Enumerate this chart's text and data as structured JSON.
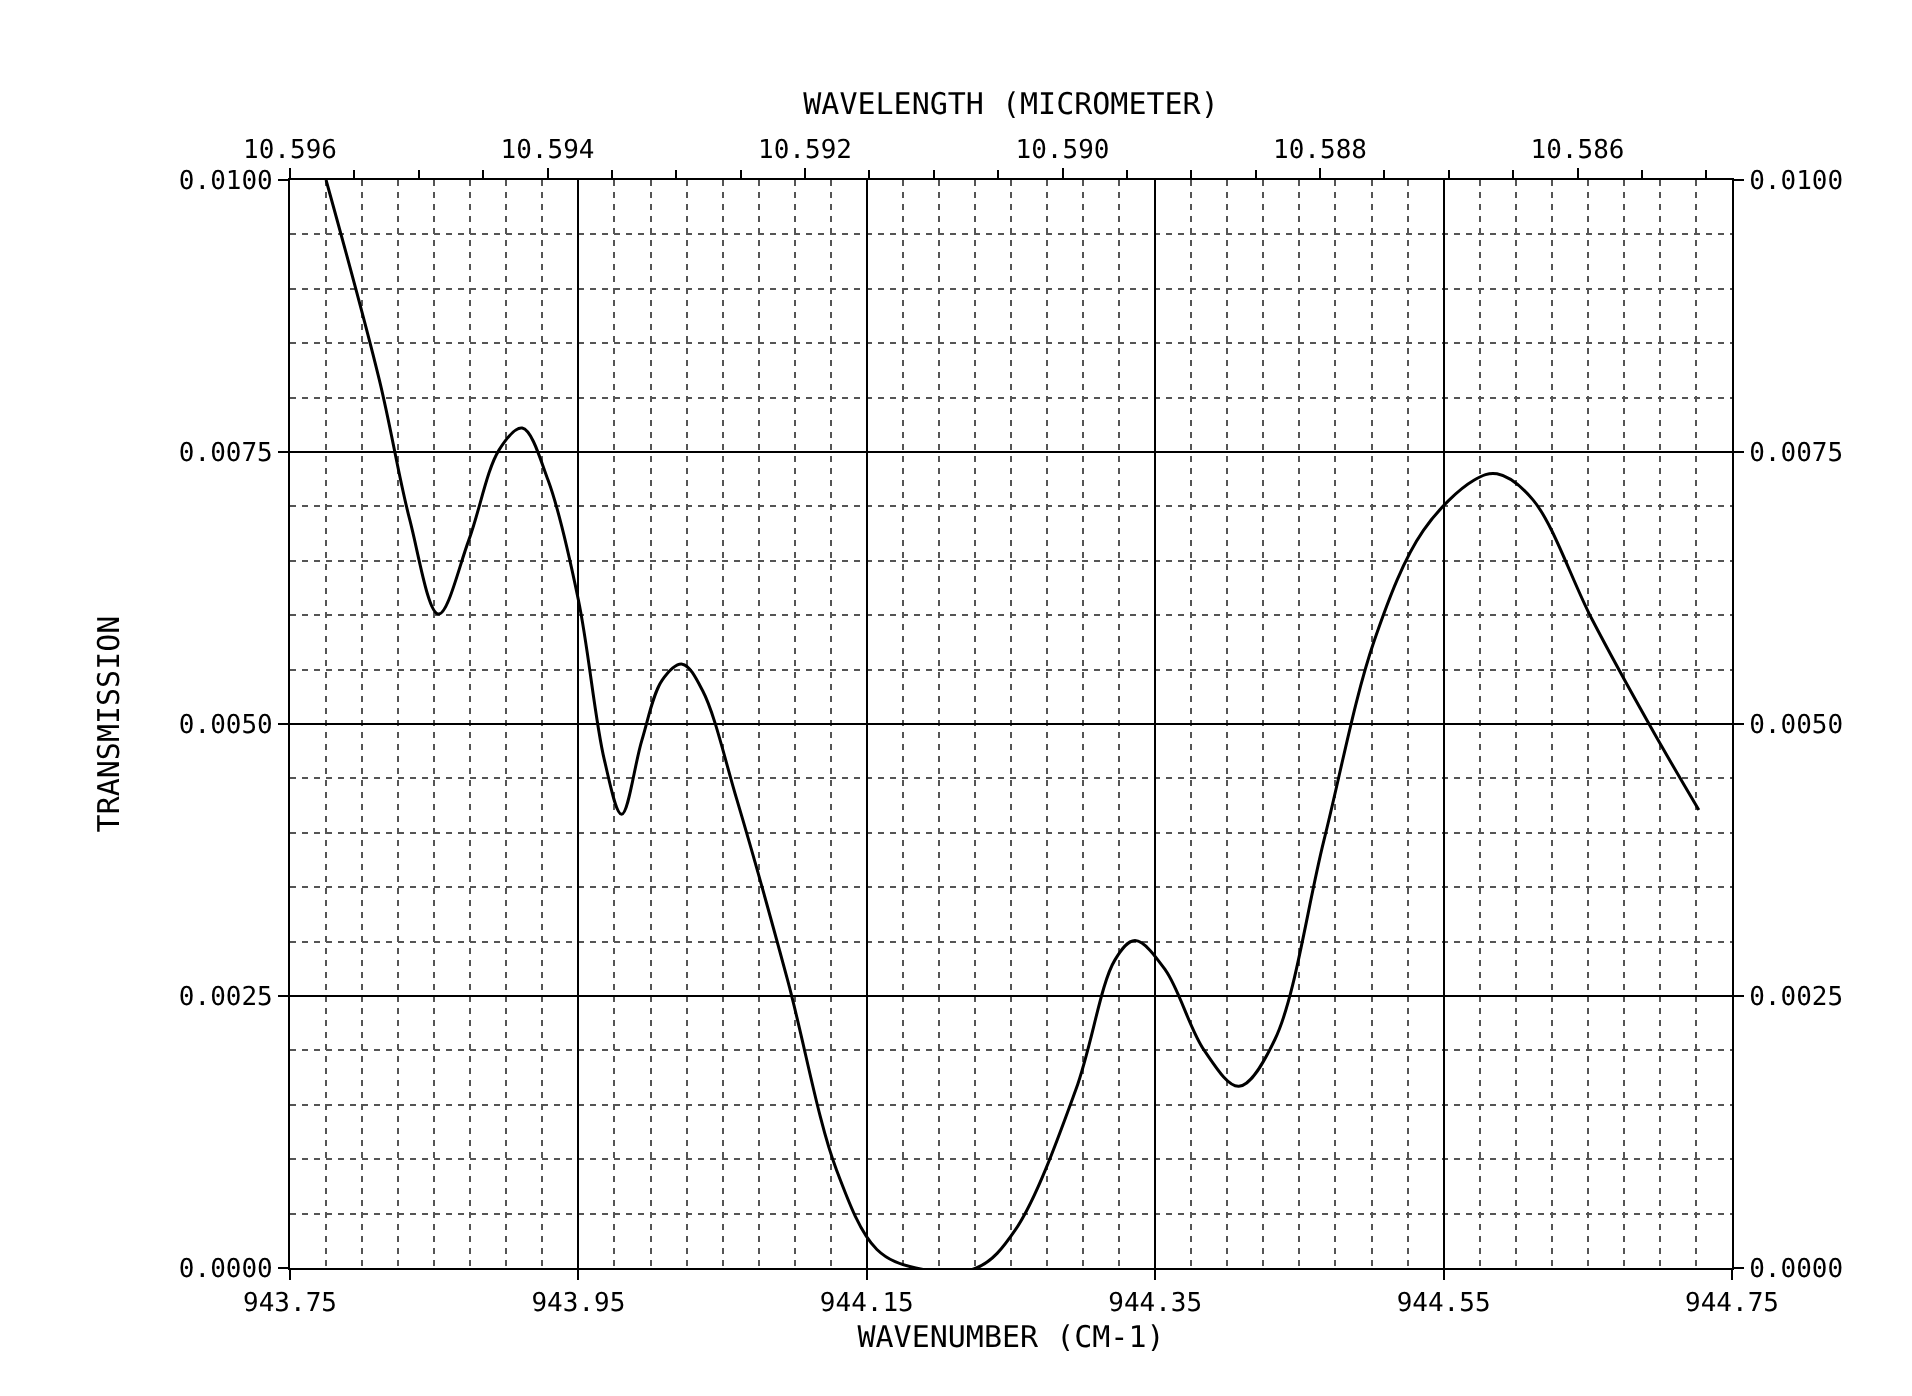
{
  "chart_data": {
    "type": "line",
    "xlabel": "WAVENUMBER (CM-1)",
    "x2label": "WAVELENGTH (MICROMETER)",
    "ylabel": "TRANSMISSION",
    "x": [
      943.775,
      943.812,
      943.833,
      943.853,
      943.874,
      943.895,
      943.911,
      943.929,
      943.95,
      943.968,
      943.98,
      943.994,
      944.008,
      944.022,
      944.036,
      944.06,
      944.095,
      944.129,
      944.157,
      944.184,
      944.226,
      944.253,
      944.295,
      944.322,
      944.336,
      944.357,
      944.384,
      944.408,
      944.433,
      944.467,
      944.502,
      944.536,
      944.571,
      944.587,
      944.612,
      944.653,
      944.695,
      944.727
    ],
    "series": [
      {
        "color": "#000000",
        "values": [
          0.01,
          0.00816,
          0.00688,
          0.00601,
          0.00669,
          0.00752,
          0.00772,
          0.00724,
          0.00614,
          0.00467,
          0.00417,
          0.00485,
          0.0054,
          0.00555,
          0.00531,
          0.0043,
          0.00265,
          0.0009,
          0.00017,
          0.0,
          0.0,
          0.00035,
          0.00164,
          0.00283,
          0.00301,
          0.00274,
          0.002,
          0.00167,
          0.0021,
          0.00393,
          0.00577,
          0.00678,
          0.00724,
          0.0073,
          0.00706,
          0.00596,
          0.00494,
          0.00421
        ]
      }
    ],
    "xlim": [
      943.75,
      944.75
    ],
    "xticks": [
      943.75,
      943.95,
      944.15,
      944.35,
      944.55,
      944.75
    ],
    "x2lim": [
      10.596,
      10.5848
    ],
    "x2ticks": [
      {
        "value": 10.596,
        "label": "10.596"
      },
      {
        "value": 10.594,
        "label": "10.594"
      },
      {
        "value": 10.592,
        "label": "10.592"
      },
      {
        "value": 10.59,
        "label": "10.590"
      },
      {
        "value": 10.588,
        "label": "10.588"
      },
      {
        "value": 10.586,
        "label": "10.586"
      }
    ],
    "ylim": [
      0,
      0.01
    ],
    "yticks": [
      {
        "value": 0,
        "label": "0.0000"
      },
      {
        "value": 0.0025,
        "label": "0.0025"
      },
      {
        "value": 0.005,
        "label": "0.0050"
      },
      {
        "value": 0.0075,
        "label": "0.0075"
      },
      {
        "value": 0.01,
        "label": "0.0100"
      }
    ],
    "y2lim": [
      0,
      0.01
    ],
    "y2ticks": [
      {
        "value": 0,
        "label": "0.0000"
      },
      {
        "value": 0.0025,
        "label": "0.0025"
      },
      {
        "value": 0.005,
        "label": "0.0050"
      },
      {
        "value": 0.0075,
        "label": "0.0075"
      },
      {
        "value": 0.01,
        "label": "0.0100"
      }
    ],
    "grid": true,
    "marker": "none",
    "line_style": "solid"
  }
}
